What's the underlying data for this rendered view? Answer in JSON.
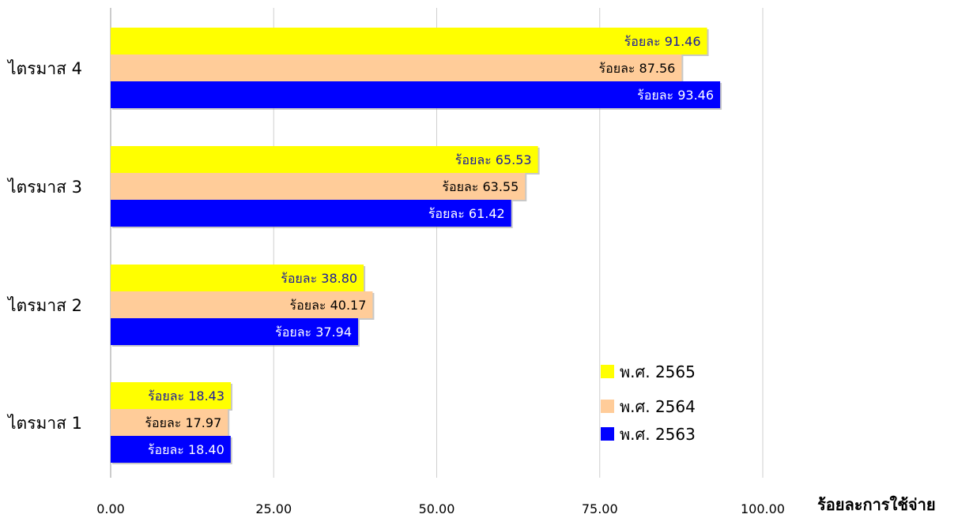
{
  "chart_data": {
    "type": "bar",
    "orientation": "horizontal",
    "categories": [
      "ไตรมาส 4",
      "ไตรมาส 3",
      "ไตรมาส 2",
      "ไตรมาส 1"
    ],
    "series": [
      {
        "name": "พ.ศ. 2565",
        "color": "#FFFF00",
        "label_color": "#1a1aa0",
        "values": [
          91.46,
          65.53,
          38.8,
          18.43
        ],
        "labels": [
          "ร้อยละ 91.46",
          "ร้อยละ 65.53",
          "ร้อยละ 38.80",
          "ร้อยละ 18.43"
        ]
      },
      {
        "name": "พ.ศ. 2564",
        "color": "#FFCC99",
        "label_color": "#000000",
        "values": [
          87.56,
          63.55,
          40.17,
          17.97
        ],
        "labels": [
          "ร้อยละ 87.56",
          "ร้อยละ 63.55",
          "ร้อยละ 40.17",
          "ร้อยละ 17.97"
        ]
      },
      {
        "name": "พ.ศ. 2563",
        "color": "#0000FF",
        "label_color": "#FFFFFF",
        "values": [
          93.46,
          61.42,
          37.94,
          18.4
        ],
        "labels": [
          "ร้อยละ 93.46",
          "ร้อยละ 61.42",
          "ร้อยละ 37.94",
          "ร้อยละ 18.40"
        ]
      }
    ],
    "xlabel": "ร้อยละการใช้จ่าย",
    "xlim": [
      0,
      100
    ],
    "xticks": [
      0,
      25,
      50,
      75,
      100
    ],
    "xtick_labels": [
      "0.00",
      "25.00",
      "50.00",
      "75.00",
      "100.00"
    ],
    "grid": "vertical",
    "legend_position": "bottom-right"
  }
}
